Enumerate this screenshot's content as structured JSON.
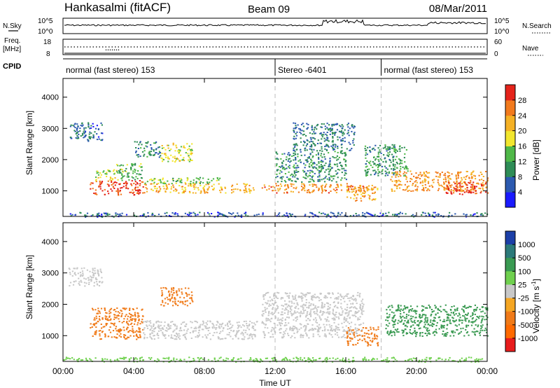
{
  "header": {
    "title": "Hankasalmi (fitACF)",
    "beam": "Beam 09",
    "date": "08/Mar/2011"
  },
  "sky_panel": {
    "left_label": "N.Sky",
    "right_label": "N.Search",
    "y_ticks_left": [
      "10^5",
      "10^0"
    ],
    "y_ticks_right": [
      "10^5",
      "10^0"
    ],
    "legend_style": "dotted"
  },
  "freq_panel": {
    "left_label_line1": "Freq.",
    "left_label_line2": "[MHz]",
    "y_ticks_left": [
      "18",
      "8"
    ],
    "right_label": "Nave",
    "y_ticks_right": [
      "60",
      "0"
    ],
    "legend_style": "dotted"
  },
  "cpid": {
    "label": "CPID",
    "segments": [
      {
        "text": "normal (fast stereo) 153",
        "start_hour": 0,
        "end_hour": 12
      },
      {
        "text": "Stereo -6401",
        "start_hour": 12,
        "end_hour": 18
      },
      {
        "text": "normal (fast stereo) 153",
        "start_hour": 18,
        "end_hour": 24
      }
    ]
  },
  "x_axis": {
    "label": "Time UT",
    "range_hours": [
      0,
      24
    ],
    "ticks": [
      "00:00",
      "04:00",
      "08:00",
      "12:00",
      "16:00",
      "20:00",
      "00:00"
    ],
    "tick_hours": [
      0,
      4,
      8,
      12,
      16,
      20,
      24
    ]
  },
  "chart_data": [
    {
      "type": "heatmap",
      "name": "power",
      "ylabel": "Slant Range [km]",
      "ylim": [
        180,
        4600
      ],
      "y_ticks": [
        1000,
        2000,
        3000,
        4000
      ],
      "y_tick_labels": [
        "1000",
        "2000",
        "3000",
        "4000"
      ],
      "colorbar": {
        "label": "Power [dB]",
        "ticks": [
          4,
          8,
          12,
          16,
          20,
          24,
          28
        ],
        "tick_labels": [
          "4",
          "8",
          "12",
          "16",
          "20",
          "24",
          "28"
        ],
        "range": [
          0,
          32
        ],
        "colors": [
          "#1a1aff",
          "#2c5ab0",
          "#2e8c56",
          "#4fb848",
          "#f2e62e",
          "#f5b125",
          "#f27a1d",
          "#e5231b"
        ]
      },
      "dashed_vlines_hours": [
        12,
        18
      ],
      "echo_regions": [
        {
          "t": [
            1.5,
            4.5
          ],
          "r": [
            880,
            1350
          ],
          "value": 29
        },
        {
          "t": [
            1.8,
            3.2
          ],
          "r": [
            1350,
            1700
          ],
          "value": 17
        },
        {
          "t": [
            3.0,
            4.5
          ],
          "r": [
            1350,
            1900
          ],
          "value": 13
        },
        {
          "t": [
            4.5,
            10.8
          ],
          "r": [
            950,
            1250
          ],
          "value": 22
        },
        {
          "t": [
            4.5,
            9.0
          ],
          "r": [
            1250,
            1450
          ],
          "value": 15
        },
        {
          "t": [
            5.5,
            7.3
          ],
          "r": [
            1950,
            2550
          ],
          "value": 18
        },
        {
          "t": [
            4.0,
            5.5
          ],
          "r": [
            2100,
            2600
          ],
          "value": 9
        },
        {
          "t": [
            0.3,
            2.2
          ],
          "r": [
            2600,
            3200
          ],
          "value": 7
        },
        {
          "t": [
            11.2,
            17.0
          ],
          "r": [
            950,
            1250
          ],
          "value": 25
        },
        {
          "t": [
            12.0,
            16.0
          ],
          "r": [
            1300,
            2300
          ],
          "value": 10
        },
        {
          "t": [
            13.0,
            16.5
          ],
          "r": [
            2300,
            3200
          ],
          "value": 8
        },
        {
          "t": [
            16.0,
            17.8
          ],
          "r": [
            700,
            1200
          ],
          "value": 23
        },
        {
          "t": [
            17.0,
            19.5
          ],
          "r": [
            1500,
            2500
          ],
          "value": 11
        },
        {
          "t": [
            18.5,
            24.0
          ],
          "r": [
            1000,
            1650
          ],
          "value": 24
        },
        {
          "t": [
            21.5,
            24.0
          ],
          "r": [
            900,
            1300
          ],
          "value": 29
        },
        {
          "t": [
            0.0,
            24.0
          ],
          "r": [
            180,
            330
          ],
          "value": 6
        }
      ]
    },
    {
      "type": "heatmap",
      "name": "velocity",
      "ylabel": "Slant Range [km]",
      "ylim": [
        180,
        4600
      ],
      "y_ticks": [
        1000,
        2000,
        3000,
        4000
      ],
      "y_tick_labels": [
        "1000",
        "2000",
        "3000",
        "4000"
      ],
      "colorbar": {
        "label": "Velocity [m s^-1]",
        "ticks": [
          1000,
          500,
          100,
          25,
          -25,
          -100,
          -500,
          -1000
        ],
        "tick_labels": [
          "1000",
          "500",
          "100",
          "25",
          "-25",
          "-100",
          "-500",
          "-1000"
        ],
        "colors": [
          "#1c3fa8",
          "#2c7a7a",
          "#3a9a52",
          "#6fd04e",
          "#c8c8c8",
          "#f5a623",
          "#f07a18",
          "#ff6a00",
          "#e81c1c"
        ]
      },
      "dashed_vlines_hours": [
        12,
        18
      ],
      "echo_regions": [
        {
          "t": [
            1.5,
            4.5
          ],
          "r": [
            900,
            1900
          ],
          "value": -150
        },
        {
          "t": [
            5.5,
            7.3
          ],
          "r": [
            1950,
            2550
          ],
          "value": -300
        },
        {
          "t": [
            4.5,
            11.0
          ],
          "r": [
            900,
            1500
          ],
          "value": 0
        },
        {
          "t": [
            0.3,
            2.2
          ],
          "r": [
            2600,
            3200
          ],
          "value": 0
        },
        {
          "t": [
            11.2,
            17.0
          ],
          "r": [
            950,
            2400
          ],
          "value": 0
        },
        {
          "t": [
            16.0,
            17.8
          ],
          "r": [
            700,
            1300
          ],
          "value": -200
        },
        {
          "t": [
            18.2,
            24.0
          ],
          "r": [
            1000,
            2000
          ],
          "value": 300
        },
        {
          "t": [
            0.0,
            24.0
          ],
          "r": [
            180,
            330
          ],
          "value": 50
        }
      ]
    }
  ]
}
